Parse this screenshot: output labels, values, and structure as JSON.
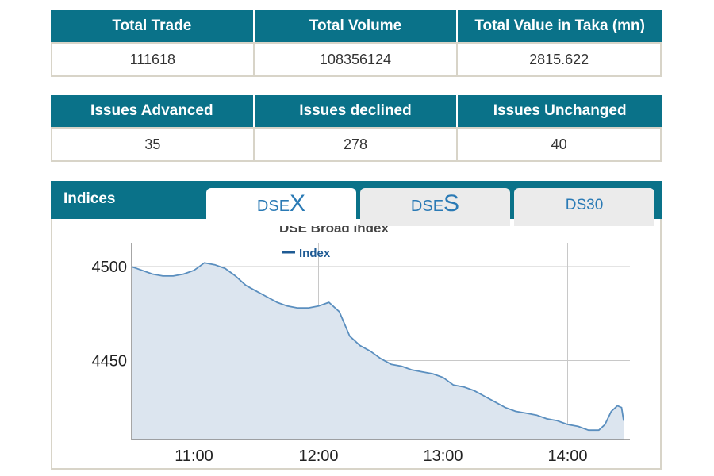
{
  "summary": {
    "headers": [
      "Total Trade",
      "Total Volume",
      "Total Value in Taka (mn)"
    ],
    "values": [
      "111618",
      "108356124",
      "2815.622"
    ]
  },
  "issues": {
    "headers": [
      "Issues Advanced",
      "Issues declined",
      "Issues Unchanged"
    ],
    "values": [
      "35",
      "278",
      "40"
    ]
  },
  "indices": {
    "title": "Indices",
    "tabs": [
      {
        "prefix": "DSE",
        "suffix": "X"
      },
      {
        "prefix": "DSE",
        "suffix": "S"
      },
      {
        "label": "DS30"
      }
    ],
    "active_tab": 0
  },
  "colors": {
    "header_bg": "#0a7289",
    "line": "#5b8fbf",
    "fill": "#dce5ef",
    "tab_text": "#2a7ab5"
  },
  "chart_data": {
    "type": "area",
    "title": "DSE Broad Index",
    "legend": [
      {
        "name": "Index",
        "color": "#1f5b94"
      }
    ],
    "legend_position": "top-center",
    "xlabel": "",
    "ylabel": "",
    "x_ticks": [
      "11:00",
      "12:00",
      "13:00",
      "14:00"
    ],
    "x_tick_minutes": [
      660,
      720,
      780,
      840
    ],
    "xlim_minutes": [
      630,
      870
    ],
    "y_ticks": [
      4450,
      4500
    ],
    "ylim": [
      4408,
      4511
    ],
    "grid": true,
    "series": [
      {
        "name": "Index",
        "x_minutes": [
          630,
          635,
          640,
          645,
          650,
          655,
          660,
          665,
          670,
          675,
          680,
          685,
          690,
          695,
          700,
          705,
          710,
          715,
          720,
          725,
          730,
          735,
          740,
          745,
          750,
          755,
          760,
          765,
          770,
          775,
          780,
          785,
          790,
          795,
          800,
          805,
          810,
          815,
          820,
          825,
          830,
          835,
          840,
          845,
          850,
          855,
          858,
          861,
          864,
          866,
          867
        ],
        "values": [
          4500,
          4498,
          4496,
          4495,
          4495,
          4496,
          4498,
          4502,
          4501,
          4499,
          4495,
          4490,
          4487,
          4484,
          4481,
          4479,
          4478,
          4478,
          4479,
          4481,
          4476,
          4463,
          4458,
          4455,
          4451,
          4448,
          4447,
          4445,
          4444,
          4443,
          4441,
          4437,
          4436,
          4434,
          4431,
          4428,
          4425,
          4423,
          4422,
          4421,
          4419,
          4418,
          4416,
          4415,
          4413,
          4413,
          4416,
          4423,
          4426,
          4425,
          4418
        ]
      }
    ]
  }
}
